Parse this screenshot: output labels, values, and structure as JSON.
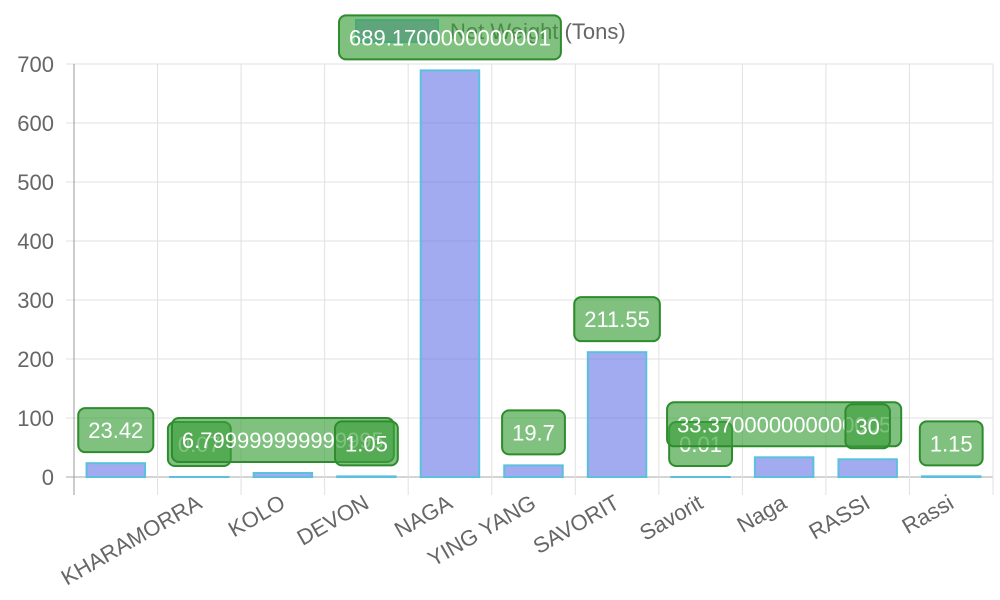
{
  "chart_data": {
    "type": "bar",
    "legend": "Net Weight (Tons)",
    "categories": [
      null,
      "KHARAMORRA",
      "KOLO",
      "DEVON",
      "NAGA",
      "YING YANG",
      "SAVORIT",
      "Savorit",
      "Naga",
      "RASSI",
      "Rassi"
    ],
    "values": [
      23.42,
      0.07,
      6.799999999999995,
      1.05,
      689.1700000000001,
      19.7,
      211.55,
      0.01,
      33.370000000000005,
      30,
      1.15
    ],
    "color": "rgba(100,115,230,0.6)",
    "border_color": "#5bc0de",
    "label_color": "rgba(60,160,60,0.65)",
    "label_border": "#2e8b2e",
    "ylim": [
      0,
      700
    ],
    "yticks": [
      0,
      100,
      200,
      300,
      400,
      500,
      600,
      700
    ],
    "grid": true
  }
}
